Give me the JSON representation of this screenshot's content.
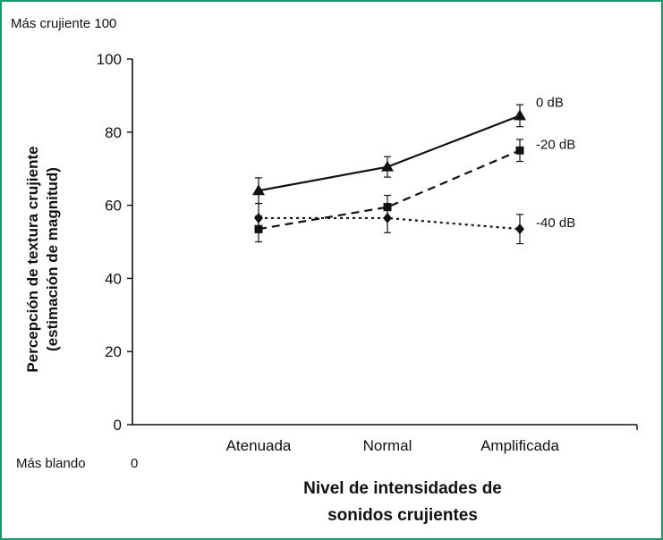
{
  "annotations": {
    "top": "Más crujiente 100",
    "bottom_left": "Más blando",
    "bottom_zero": "0"
  },
  "chart_data": {
    "type": "line",
    "title": "",
    "xlabel_line1": "Nivel de intensidades de",
    "xlabel_line2": "sonidos crujientes",
    "ylabel_line1": "Percepción de textura crujiente",
    "ylabel_line2": "(estimación de magnitud)",
    "categories": [
      "Atenuada",
      "Normal",
      "Amplificada"
    ],
    "ylim": [
      0,
      100
    ],
    "yticks": [
      "0",
      "20",
      "40",
      "60",
      "80",
      "100"
    ],
    "grid": false,
    "series": [
      {
        "name": "0 dB",
        "marker": "triangle",
        "dash": "solid",
        "values": [
          64,
          70.5,
          84.5
        ],
        "errors": [
          3.5,
          2.8,
          3.0
        ]
      },
      {
        "name": "-20 dB",
        "marker": "square",
        "dash": "dashed",
        "values": [
          53.5,
          59.5,
          75
        ],
        "errors": [
          3.5,
          3.2,
          3.0
        ]
      },
      {
        "name": "-40 dB",
        "marker": "diamond",
        "dash": "dotted",
        "values": [
          56.5,
          56.5,
          53.5
        ],
        "errors": [
          4.0,
          4.0,
          4.0
        ]
      }
    ]
  }
}
